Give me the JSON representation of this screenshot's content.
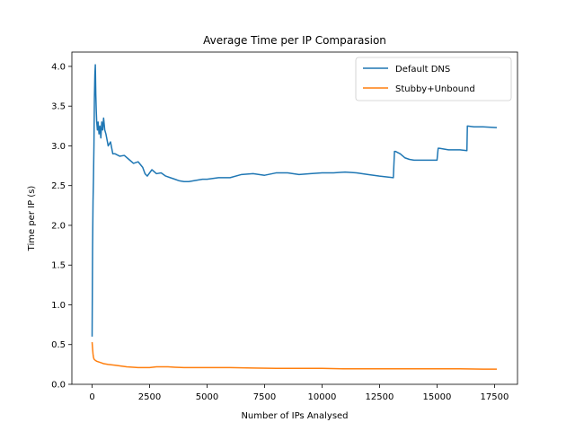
{
  "chart_data": {
    "type": "line",
    "title": "Average Time per IP Comparasion",
    "xlabel": "Number of IPs Analysed",
    "ylabel": "Time per IP (s)",
    "xlim": [
      -880,
      18500
    ],
    "ylim": [
      0.0,
      4.18
    ],
    "xticks": [
      0,
      2500,
      5000,
      7500,
      10000,
      12500,
      15000,
      17500
    ],
    "xtick_labels": [
      "0",
      "2500",
      "5000",
      "7500",
      "10000",
      "12500",
      "15000",
      "17500"
    ],
    "yticks": [
      0.0,
      0.5,
      1.0,
      1.5,
      2.0,
      2.5,
      3.0,
      3.5,
      4.0
    ],
    "ytick_labels": [
      "0.0",
      "0.5",
      "1.0",
      "1.5",
      "2.0",
      "2.5",
      "3.0",
      "3.5",
      "4.0"
    ],
    "grid": false,
    "legend_position": "top-right",
    "series": [
      {
        "name": "Default DNS",
        "color": "#1f77b4",
        "x": [
          0,
          20,
          40,
          60,
          80,
          100,
          120,
          140,
          160,
          180,
          200,
          230,
          260,
          300,
          340,
          380,
          420,
          460,
          500,
          550,
          600,
          700,
          800,
          900,
          1000,
          1200,
          1400,
          1600,
          1800,
          2000,
          2200,
          2300,
          2400,
          2600,
          2800,
          3000,
          3200,
          3400,
          3600,
          3800,
          4000,
          4200,
          4400,
          4600,
          4800,
          5000,
          5500,
          6000,
          6500,
          7000,
          7500,
          8000,
          8500,
          9000,
          9500,
          10000,
          10500,
          11000,
          11500,
          12000,
          12500,
          13100,
          13150,
          13200,
          13400,
          13600,
          13800,
          14000,
          14200,
          14500,
          15000,
          15050,
          15100,
          15500,
          16000,
          16300,
          16320,
          16340,
          16600,
          17000,
          17600
        ],
        "y": [
          0.6,
          1.7,
          2.3,
          2.6,
          3.0,
          3.6,
          3.9,
          4.02,
          3.65,
          3.45,
          3.3,
          3.2,
          3.3,
          3.15,
          3.25,
          3.1,
          3.3,
          3.2,
          3.35,
          3.2,
          3.15,
          3.0,
          3.05,
          2.9,
          2.9,
          2.87,
          2.88,
          2.83,
          2.78,
          2.8,
          2.73,
          2.65,
          2.62,
          2.7,
          2.65,
          2.66,
          2.62,
          2.6,
          2.58,
          2.56,
          2.55,
          2.55,
          2.56,
          2.57,
          2.58,
          2.58,
          2.6,
          2.6,
          2.64,
          2.65,
          2.63,
          2.66,
          2.66,
          2.64,
          2.65,
          2.66,
          2.66,
          2.67,
          2.66,
          2.64,
          2.62,
          2.6,
          2.93,
          2.93,
          2.9,
          2.85,
          2.83,
          2.82,
          2.82,
          2.82,
          2.82,
          2.97,
          2.97,
          2.95,
          2.95,
          2.94,
          3.25,
          3.25,
          3.24,
          3.24,
          3.23
        ]
      },
      {
        "name": "Stubby+Unbound",
        "color": "#ff7f0e",
        "x": [
          0,
          20,
          40,
          60,
          80,
          100,
          150,
          200,
          300,
          400,
          500,
          700,
          1000,
          1500,
          2000,
          2500,
          2800,
          3000,
          3300,
          3600,
          4000,
          5000,
          6000,
          7000,
          8000,
          9000,
          10000,
          11000,
          12000,
          13000,
          14000,
          15000,
          16000,
          17000,
          17600
        ],
        "y": [
          0.53,
          0.45,
          0.38,
          0.34,
          0.32,
          0.31,
          0.3,
          0.29,
          0.28,
          0.27,
          0.26,
          0.25,
          0.24,
          0.22,
          0.21,
          0.21,
          0.22,
          0.22,
          0.22,
          0.215,
          0.21,
          0.21,
          0.21,
          0.205,
          0.2,
          0.2,
          0.2,
          0.195,
          0.195,
          0.195,
          0.195,
          0.195,
          0.195,
          0.19,
          0.19
        ]
      }
    ]
  }
}
